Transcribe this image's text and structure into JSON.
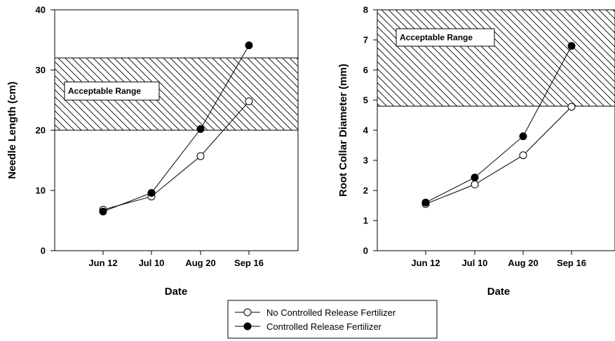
{
  "chart_data": [
    {
      "type": "line",
      "categories": [
        "Jun 12",
        "Jul 10",
        "Aug 20",
        "Sep 16"
      ],
      "xlabel": "Date",
      "ylabel": "Needle Length (cm)",
      "ylim": [
        0,
        40
      ],
      "yticks": [
        "0",
        "10",
        "20",
        "30",
        "40"
      ],
      "band": {
        "label": "Acceptable Range",
        "from": 20,
        "to": 32
      },
      "series": [
        {
          "name": "No Controlled Release Fertilizer",
          "marker": "open-circle",
          "values": [
            6.8,
            9.0,
            15.7,
            24.8
          ]
        },
        {
          "name": "Controlled Release Fertilizer",
          "marker": "filled-circle",
          "values": [
            6.5,
            9.6,
            20.2,
            34.1
          ]
        }
      ]
    },
    {
      "type": "line",
      "categories": [
        "Jun 12",
        "Jul 10",
        "Aug 20",
        "Sep 16"
      ],
      "xlabel": "Date",
      "ylabel": "Root Collar Diameter (mm)",
      "ylim": [
        0,
        8
      ],
      "yticks": [
        "0",
        "1",
        "2",
        "3",
        "4",
        "5",
        "6",
        "7",
        "8"
      ],
      "band": {
        "label": "Acceptable Range",
        "from": 4.8,
        "to": 8
      },
      "series": [
        {
          "name": "No Controlled Release Fertilizer",
          "marker": "open-circle",
          "values": [
            1.55,
            2.2,
            3.17,
            4.78
          ]
        },
        {
          "name": "Controlled Release Fertilizer",
          "marker": "filled-circle",
          "values": [
            1.6,
            2.43,
            3.8,
            6.8
          ]
        }
      ]
    }
  ],
  "legend": [
    {
      "label": "No Controlled Release Fertilizer",
      "marker": "open-circle"
    },
    {
      "label": "Controlled Release Fertilizer",
      "marker": "filled-circle"
    }
  ]
}
